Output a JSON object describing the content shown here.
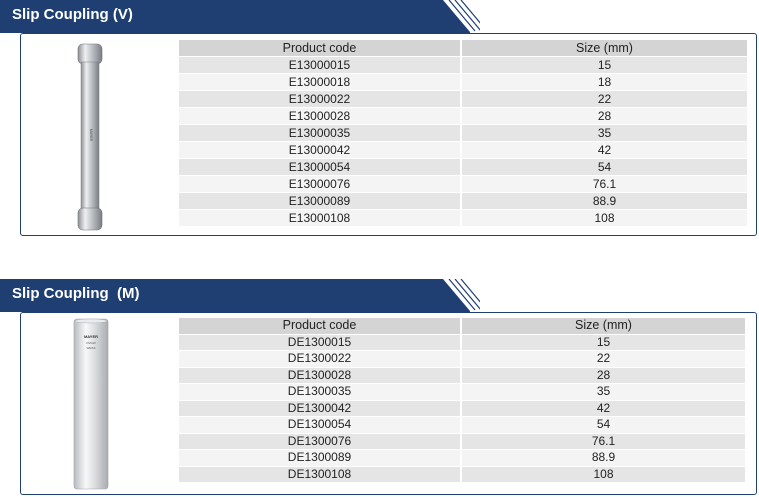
{
  "sections": [
    {
      "title": "Slip Coupling (V)",
      "columns": [
        "Product code",
        "Size (mm)"
      ],
      "rows": [
        [
          "E13000015",
          "15"
        ],
        [
          "E13000018",
          "18"
        ],
        [
          "E13000022",
          "22"
        ],
        [
          "E13000028",
          "28"
        ],
        [
          "E13000035",
          "35"
        ],
        [
          "E13000042",
          "42"
        ],
        [
          "E13000054",
          "54"
        ],
        [
          "E13000076",
          "76.1"
        ],
        [
          "E13000089",
          "88.9"
        ],
        [
          "E13000108",
          "108"
        ]
      ]
    },
    {
      "title": "Slip Coupling  (M)",
      "columns": [
        "Product code",
        "Size (mm)"
      ],
      "rows": [
        [
          "DE1300015",
          "15"
        ],
        [
          "DE1300022",
          "22"
        ],
        [
          "DE1300028",
          "28"
        ],
        [
          "DE1300035",
          "35"
        ],
        [
          "DE1300042",
          "42"
        ],
        [
          "DE1300054",
          "54"
        ],
        [
          "DE1300076",
          "76.1"
        ],
        [
          "DE1300089",
          "88.9"
        ],
        [
          "DE1300108",
          "108"
        ]
      ]
    }
  ],
  "colors": {
    "banner_dark": "#1f3f73",
    "banner_light": "#2f5a96",
    "header_row": "#d4d4d4",
    "row_odd": "#e5e5e5",
    "row_even": "#f4f4f4"
  }
}
